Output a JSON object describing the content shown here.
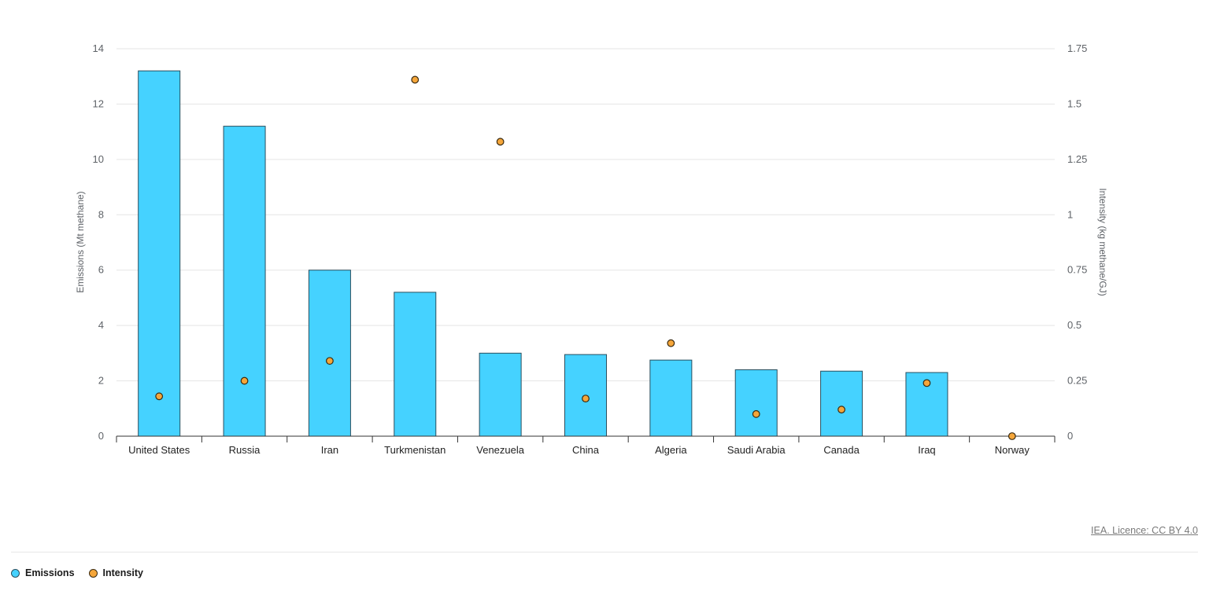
{
  "chart_data": {
    "type": "bar",
    "categories": [
      "United States",
      "Russia",
      "Iran",
      "Turkmenistan",
      "Venezuela",
      "China",
      "Algeria",
      "Saudi Arabia",
      "Canada",
      "Iraq",
      "Norway"
    ],
    "series": [
      {
        "name": "Emissions",
        "type": "bar",
        "axis": "left",
        "color": "#45d2ff",
        "values": [
          13.2,
          11.2,
          6.0,
          5.2,
          3.0,
          2.95,
          2.75,
          2.4,
          2.35,
          2.3,
          0
        ]
      },
      {
        "name": "Intensity",
        "type": "scatter",
        "axis": "right",
        "color": "#f5a63a",
        "values": [
          0.18,
          0.25,
          0.34,
          1.61,
          1.33,
          0.17,
          0.42,
          0.1,
          0.12,
          0.24,
          0.0
        ]
      }
    ],
    "ylabel": "Emissions (Mt methane)",
    "y2label": "Intensity (kg methane/GJ)",
    "ylim": [
      0,
      14
    ],
    "y2lim": [
      0,
      1.75
    ],
    "yticks": [
      "0",
      "2",
      "4",
      "6",
      "8",
      "10",
      "12",
      "14"
    ],
    "y2ticks": [
      "0",
      "0.25",
      "0.5",
      "0.75",
      "1",
      "1.25",
      "1.5",
      "1.75"
    ],
    "grid": true,
    "legend_position": "bottom-left"
  },
  "credit": "IEA. Licence: CC BY 4.0",
  "legend": {
    "items": [
      {
        "label": "Emissions",
        "color": "#45d2ff"
      },
      {
        "label": "Intensity",
        "color": "#f5a63a"
      }
    ]
  }
}
